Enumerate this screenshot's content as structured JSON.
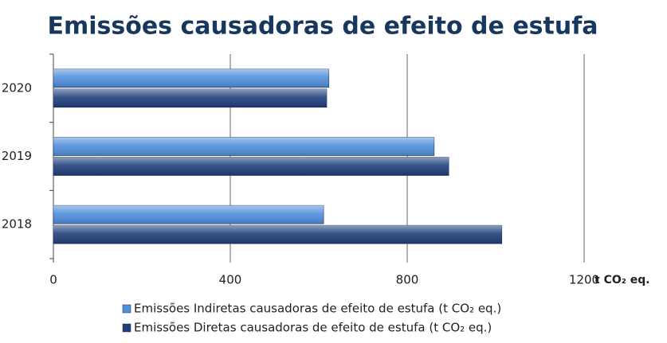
{
  "chart_data": {
    "type": "bar",
    "orientation": "horizontal",
    "title": "Emissões causadoras de efeito de estufa",
    "x_label": "t CO₂ eq.",
    "categories": [
      "2018",
      "2019",
      "2020"
    ],
    "series": [
      {
        "name": "Emissões Indiretas causadoras de efeito de estufa (t CO₂ eq.)",
        "color": "#4f8fdc",
        "values": [
          611,
          861,
          623
        ]
      },
      {
        "name": "Emissões Diretas causadoras de efeito de estufa (t CO₂ eq.)",
        "color": "#1f3f7a",
        "values": [
          1014,
          894,
          618
        ]
      }
    ],
    "xlim": [
      0,
      1200
    ],
    "xticks": [
      0,
      400,
      800,
      1200
    ],
    "grid": true,
    "legend": "bottom"
  }
}
